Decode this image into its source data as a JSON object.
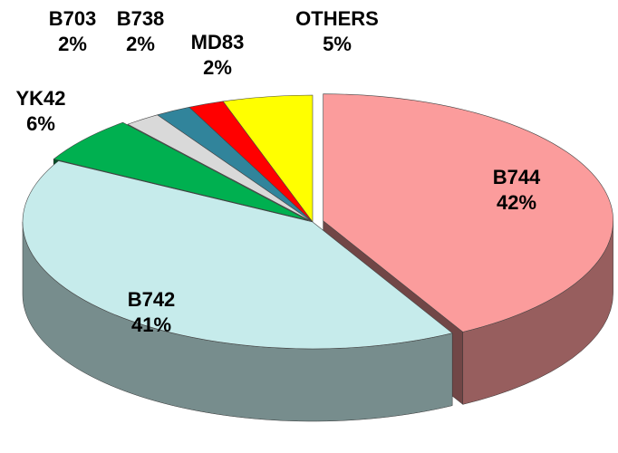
{
  "chart_data": {
    "type": "pie3d",
    "categories": [
      "B744",
      "B742",
      "YK42",
      "B703",
      "B738",
      "MD83",
      "OTHERS"
    ],
    "values": [
      42,
      41,
      6,
      2,
      2,
      2,
      5
    ],
    "value_labels": [
      "42%",
      "41%",
      "6%",
      "2%",
      "2%",
      "2%",
      "5%"
    ],
    "colors": [
      "#fb9c9c",
      "#c6ebeb",
      "#00b050",
      "#d9d9d9",
      "#31849b",
      "#ff0000",
      "#ffff00"
    ]
  }
}
